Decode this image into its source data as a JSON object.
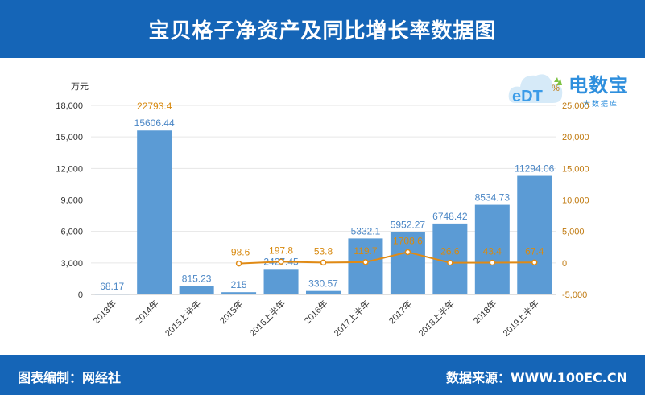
{
  "header": {
    "title": "宝贝格子净资产及同比增长率数据图"
  },
  "footer": {
    "left": "图表编制：网经社",
    "right": "数据来源：WWW.100EC.CN"
  },
  "logo": {
    "brand": "电数宝",
    "sub": "大数据库",
    "mark": "eDT",
    "icon": "cloud-logo-icon"
  },
  "colors": {
    "bar": "#5b9bd5",
    "line": "#e08a14",
    "bar_label": "#4a86c5",
    "line_label": "#d88a10",
    "header": "#1565b7"
  },
  "chart_data": {
    "type": "bar",
    "categories": [
      "2013年",
      "2014年",
      "2015上半年",
      "2015年",
      "2016上半年",
      "2016年",
      "2017上半年",
      "2017年",
      "2018上半年",
      "2018年",
      "2019上半年"
    ],
    "y_unit": "万元",
    "y2_unit": "%",
    "ylim": [
      0,
      18000
    ],
    "y_ticks": [
      "18,000",
      "15,000",
      "12,000",
      "9,000",
      "6,000",
      "3,000",
      "0"
    ],
    "y2lim": [
      -5000,
      25000
    ],
    "y2_ticks": [
      "25,000",
      "20,000",
      "15,000",
      "10,000",
      "5,000",
      "0",
      "-5,000"
    ],
    "series": [
      {
        "type": "bar",
        "values": [
          68.17,
          15606.44,
          815.23,
          215,
          2427.45,
          330.57,
          5332.1,
          5952.27,
          6748.42,
          8534.73,
          11294.06
        ],
        "labels": [
          "68.17",
          "15606.44",
          "815.23",
          "215",
          "2427.45",
          "330.57",
          "5332.1",
          "5952.27",
          "6748.42",
          "8534.73",
          "11294.06"
        ]
      },
      {
        "type": "line",
        "axis": "right",
        "values": [
          null,
          22793.4,
          null,
          -98.6,
          197.8,
          53.8,
          119.7,
          1708.6,
          26.6,
          43.4,
          67.4
        ],
        "labels": [
          "",
          "22793.4",
          "",
          "-98.6",
          "197.8",
          "53.8",
          "119.7",
          "1708.6",
          "26.6",
          "43.4",
          "67.4"
        ]
      }
    ],
    "grid": true
  }
}
